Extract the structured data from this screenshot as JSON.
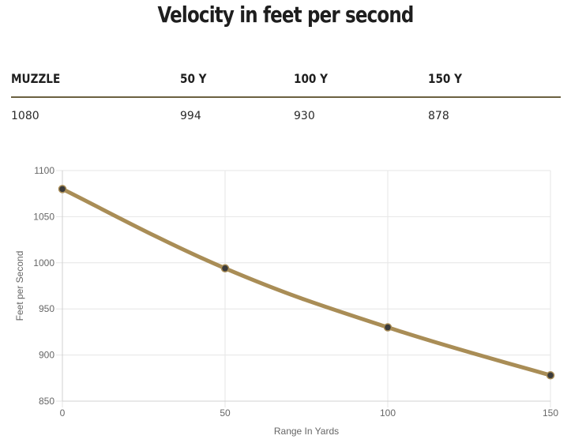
{
  "title": "Velocity in feet per second",
  "table": {
    "headers": [
      "MUZZLE",
      "50 Y",
      "100 Y",
      "150 Y"
    ],
    "values": [
      "1080",
      "994",
      "930",
      "878"
    ]
  },
  "colors": {
    "line": "#a98d56",
    "point": "#3b3b3b",
    "rule": "#6b6040",
    "grid": "#e6e6e6"
  },
  "chart_data": {
    "type": "line",
    "title": "",
    "xlabel": "Range In Yards",
    "ylabel": "Feet per Second",
    "x": [
      0,
      50,
      100,
      150
    ],
    "series": [
      {
        "name": "Velocity",
        "values": [
          1080,
          994,
          930,
          878
        ]
      }
    ],
    "xlim": [
      0,
      150
    ],
    "ylim": [
      850,
      1100
    ],
    "xticks": [
      0,
      50,
      100,
      150
    ],
    "yticks": [
      850,
      900,
      950,
      1000,
      1050,
      1100
    ],
    "grid": true,
    "legend": "none"
  }
}
